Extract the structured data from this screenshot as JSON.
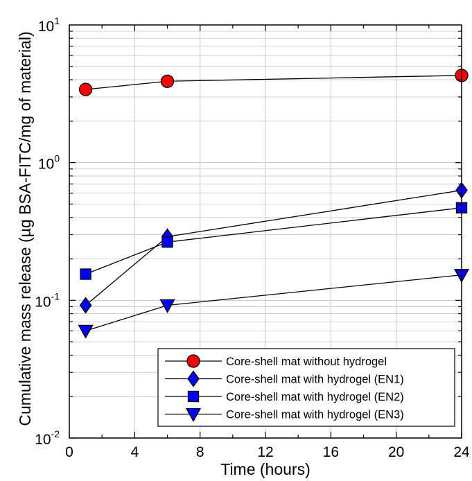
{
  "chart_data": {
    "type": "line",
    "xlabel": "Time (hours)",
    "ylabel": "Cumulative mass release (µg BSA-FITC/mg of material)",
    "y_scale": "log",
    "xlim": [
      0,
      24
    ],
    "ylim": [
      0.01,
      10
    ],
    "x_ticks": [
      0,
      4,
      8,
      12,
      16,
      20,
      24
    ],
    "x_tick_labels": [
      "0",
      "4",
      "8",
      "12",
      "16",
      "20",
      "24"
    ],
    "y_ticks": [
      {
        "value": 0.01,
        "base": "10",
        "exp": "-2"
      },
      {
        "value": 0.1,
        "base": "10",
        "exp": "-1"
      },
      {
        "value": 1,
        "base": "10",
        "exp": "0"
      },
      {
        "value": 10,
        "base": "10",
        "exp": "1"
      }
    ],
    "grid": true,
    "legend_position": "bottom-right",
    "series": [
      {
        "name": "Core-shell mat without hydrogel",
        "marker": "circle",
        "color": "#ff0000",
        "x": [
          1,
          6,
          24
        ],
        "y": [
          3.4,
          3.9,
          4.3
        ]
      },
      {
        "name": "Core-shell mat with hydrogel (EN1)",
        "marker": "diamond",
        "color": "#0000ff",
        "x": [
          1,
          6,
          24
        ],
        "y": [
          0.092,
          0.29,
          0.63
        ]
      },
      {
        "name": "Core-shell mat with hydrogel (EN2)",
        "marker": "square",
        "color": "#0000ff",
        "x": [
          1,
          6,
          24
        ],
        "y": [
          0.155,
          0.265,
          0.47
        ]
      },
      {
        "name": "Core-shell mat with hydrogel (EN3)",
        "marker": "triangle-down",
        "color": "#0000ff",
        "x": [
          1,
          6,
          24
        ],
        "y": [
          0.06,
          0.092,
          0.153
        ]
      }
    ]
  }
}
